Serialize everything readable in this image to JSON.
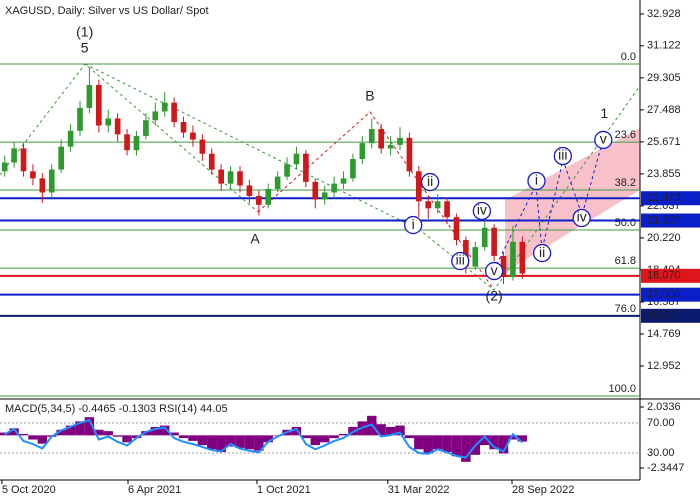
{
  "chart_data": [
    {
      "type": "candlestick",
      "title": "XAGUSD, Daily:  Silver vs US Dollar/ Spot",
      "xlim": [
        0,
        68
      ],
      "xticks": [
        {
          "value": 0.2,
          "label": "5 Oct 2020"
        },
        {
          "value": 13.6,
          "label": "6 Apr 2021"
        },
        {
          "value": 27.3,
          "label": "1 Oct 2021"
        },
        {
          "value": 41.2,
          "label": "31 Mar 2022"
        },
        {
          "value": 54.4,
          "label": "28 Sep 2022"
        }
      ],
      "ylim": [
        11.136,
        33.439
      ],
      "yticks": [
        32.928,
        31.122,
        29.305,
        27.488,
        25.671,
        23.855,
        22.037,
        {
          "value": 20.22,
          "label": "20.220"
        },
        18.404,
        16.587,
        14.769,
        12.952
      ],
      "up_color": "#2f9a2f",
      "down_color": "#d0181b",
      "open": [
        24.0,
        24.5,
        25.3,
        24.0,
        23.6,
        22.8,
        24.1,
        25.4,
        26.3,
        27.6,
        28.9,
        26.6,
        27.0,
        26.1,
        25.2,
        26.0,
        26.9,
        27.4,
        27.9,
        26.8,
        26.2,
        25.8,
        25.0,
        24.1,
        23.3,
        24.0,
        23.2,
        22.6,
        22.1,
        23.0,
        23.7,
        24.4,
        25.0,
        23.4,
        22.4,
        22.8,
        23.3,
        23.6,
        24.7,
        25.6,
        26.4,
        25.3,
        25.5,
        25.9,
        24.0,
        22.3,
        21.9,
        22.3,
        21.4,
        20.1,
        18.6,
        19.7,
        20.8,
        19.2,
        18.0,
        20.0
      ],
      "high": [
        24.9,
        25.7,
        25.6,
        24.4,
        23.9,
        24.4,
        25.8,
        26.7,
        28.0,
        29.9,
        29.2,
        27.5,
        27.3,
        26.4,
        26.3,
        27.3,
        27.9,
        28.5,
        28.2,
        27.1,
        26.6,
        26.1,
        25.3,
        24.4,
        24.3,
        24.3,
        23.5,
        22.9,
        23.3,
        24.0,
        24.8,
        25.4,
        25.2,
        23.6,
        23.2,
        23.7,
        24.0,
        25.0,
        26.0,
        27.0,
        26.7,
        26.0,
        26.5,
        26.2,
        24.3,
        22.6,
        22.7,
        22.5,
        21.6,
        20.3,
        20.0,
        21.2,
        21.0,
        19.4,
        20.9,
        20.3
      ],
      "low": [
        23.7,
        24.2,
        23.7,
        23.2,
        22.2,
        22.5,
        23.9,
        25.1,
        26.0,
        27.3,
        26.2,
        26.2,
        25.7,
        24.9,
        24.9,
        25.8,
        26.6,
        27.1,
        26.5,
        25.9,
        25.4,
        24.6,
        23.8,
        22.9,
        23.0,
        22.8,
        22.2,
        21.5,
        21.9,
        22.8,
        23.5,
        24.1,
        23.1,
        21.9,
        22.1,
        22.5,
        23.0,
        23.4,
        24.4,
        25.3,
        25.0,
        24.9,
        25.2,
        23.7,
        21.4,
        21.3,
        21.6,
        21.0,
        19.8,
        18.2,
        18.4,
        19.5,
        18.9,
        17.6,
        17.8,
        17.9
      ],
      "close": [
        24.5,
        25.3,
        24.0,
        23.6,
        22.8,
        24.1,
        25.4,
        26.3,
        27.6,
        28.9,
        26.6,
        27.0,
        26.1,
        25.2,
        26.0,
        26.9,
        27.4,
        27.9,
        26.8,
        26.2,
        25.8,
        25.0,
        24.1,
        23.3,
        24.0,
        23.2,
        22.6,
        22.1,
        23.0,
        23.7,
        24.4,
        25.0,
        23.4,
        22.4,
        22.8,
        23.3,
        23.6,
        24.7,
        25.6,
        26.4,
        25.3,
        25.5,
        25.9,
        24.0,
        22.3,
        21.9,
        22.3,
        21.4,
        20.1,
        18.6,
        19.7,
        20.8,
        19.2,
        18.0,
        20.0,
        18.2
      ],
      "levels": [
        {
          "value": 22.473,
          "color": "#0a1fc8"
        },
        {
          "value": 21.207,
          "color": "#0a1fc8"
        },
        {
          "value": 18.07,
          "label": "18.070",
          "color": "#e0141b"
        },
        {
          "value": 17,
          "label": "17.000",
          "color": "#0a1fc8"
        },
        {
          "value": 15.8,
          "label": "15.800",
          "color": "#0a1a6e"
        }
      ],
      "fib_color": "#3c9a3c",
      "fib_levels": [
        {
          "value": 30.09,
          "label": "0.0"
        },
        {
          "value": 25.66,
          "label": "23.6"
        },
        {
          "value": 22.94,
          "label": "38.2"
        },
        {
          "value": 20.67,
          "label": "50.0"
        },
        {
          "value": 18.51,
          "label": "61.8"
        },
        {
          "value": 15.79,
          "label": "76.0"
        },
        {
          "value": 11.25,
          "label": "100.0"
        }
      ],
      "annotations": [
        {
          "text": "(1)",
          "x": 8.5,
          "y": 31.85,
          "color": "#2f8a2f"
        },
        {
          "text": "5",
          "x": 8.5,
          "y": 30.94,
          "color": "#a0322d"
        },
        {
          "text": "A",
          "x": 26.6,
          "y": 20.1,
          "color": "#a0322d"
        },
        {
          "text": "B",
          "x": 38.8,
          "y": 28.22,
          "color": "#a0322d"
        },
        {
          "text": "1",
          "x": 63.7,
          "y": 27.25,
          "color": "#a0322d"
        },
        {
          "text": "(2)",
          "x": 52.0,
          "y": 16.87,
          "color": "#2f8a2f"
        },
        {
          "text": "ii",
          "x": 45.2,
          "y": 23.39,
          "color": "#1a1ac8",
          "circle": true
        },
        {
          "text": "i",
          "x": 43.4,
          "y": 20.95,
          "color": "#1a1ac8",
          "circle": true
        },
        {
          "text": "iii",
          "x": 48.4,
          "y": 18.91,
          "color": "#1a1ac8",
          "circle": true
        },
        {
          "text": "iv",
          "x": 50.7,
          "y": 21.75,
          "color": "#1a1ac8",
          "circle": true
        },
        {
          "text": "v",
          "x": 52.0,
          "y": 18.34,
          "color": "#1a1ac8",
          "circle": true
        },
        {
          "text": "i",
          "x": 56.5,
          "y": 23.45,
          "color": "#1a1ac8",
          "circle": true
        },
        {
          "text": "ii",
          "x": 57.1,
          "y": 19.36,
          "color": "#1a1ac8",
          "circle": true
        },
        {
          "text": "iii",
          "x": 59.3,
          "y": 24.87,
          "color": "#1a1ac8",
          "circle": true
        },
        {
          "text": "iv",
          "x": 61.3,
          "y": 21.35,
          "color": "#1a1ac8",
          "circle": true
        },
        {
          "text": "v",
          "x": 63.6,
          "y": 25.78,
          "color": "#1a1ac8",
          "circle": true
        }
      ]
    },
    {
      "type": "macd",
      "title": "MACD(5,34,5) -0.4465 -0.1303 RSI(14) 44.05",
      "xlim": [
        0,
        68
      ],
      "ylim": [
        -3.062,
        2.464
      ],
      "yticks": [
        2.0336,
        -2.3447
      ],
      "color": "#800080",
      "values": [
        0.2,
        0.5,
        0.1,
        -0.3,
        -0.6,
        -0.1,
        0.4,
        0.7,
        1.0,
        1.3,
        0.4,
        0.3,
        -0.1,
        -0.5,
        -0.2,
        0.3,
        0.6,
        0.7,
        0.2,
        -0.2,
        -0.4,
        -0.7,
        -1.0,
        -1.2,
        -0.8,
        -0.9,
        -1.0,
        -1.1,
        -0.5,
        0.0,
        0.4,
        0.6,
        -0.2,
        -0.7,
        -0.5,
        -0.2,
        0.1,
        0.6,
        1.0,
        1.4,
        0.8,
        0.6,
        0.7,
        -0.2,
        -1.0,
        -1.3,
        -1.0,
        -1.2,
        -1.5,
        -1.9,
        -1.4,
        -0.7,
        -1.0,
        -1.3,
        -0.3,
        -0.45
      ],
      "rsi_ylim": [
        -3.3,
        99.3
      ],
      "rsi_yticks": [
        {
          "value": 70,
          "label": "70.00"
        },
        {
          "value": 30,
          "label": "30.00"
        }
      ],
      "rsi_color": "#1e90ff",
      "rsi": [
        55,
        62,
        46,
        42,
        36,
        52,
        60,
        65,
        70,
        74,
        48,
        52,
        45,
        40,
        50,
        58,
        62,
        64,
        50,
        45,
        42,
        38,
        34,
        32,
        42,
        36,
        33,
        31,
        45,
        52,
        58,
        62,
        42,
        35,
        40,
        46,
        50,
        58,
        64,
        68,
        52,
        54,
        57,
        38,
        30,
        29,
        35,
        31,
        26,
        24,
        40,
        52,
        38,
        32,
        55,
        44
      ]
    }
  ]
}
